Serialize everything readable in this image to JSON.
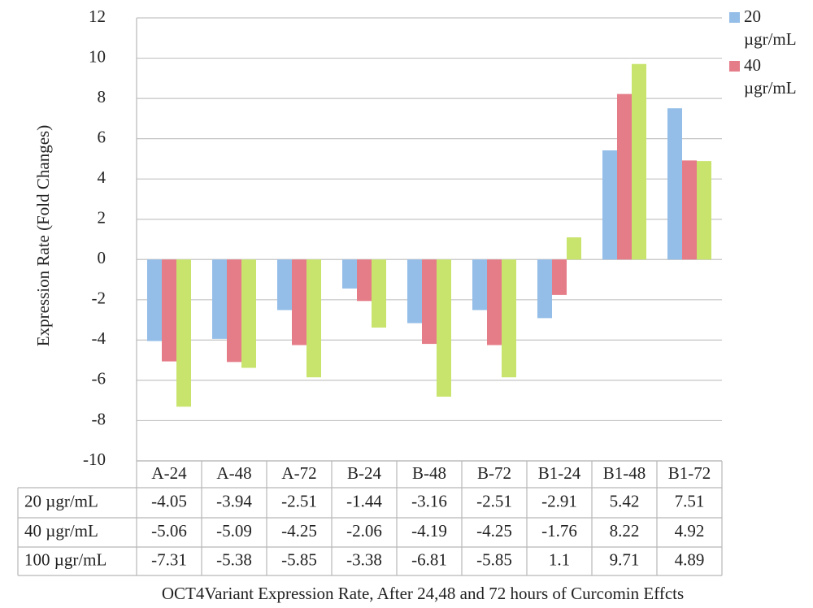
{
  "chart_data": {
    "type": "bar",
    "title": "OCT4Variant Expression Rate, After 24,48 and 72 hours of Curcomin Effcts",
    "y_label": "Expression Rate (Fold Changes)",
    "categories": [
      "A-24",
      "A-48",
      "A-72",
      "B-24",
      "B-48",
      "B-72",
      "B1-24",
      "B1-48",
      "B1-72"
    ],
    "series": [
      {
        "name": "20 µgr/mL",
        "color": "#94bde8",
        "values": [
          -4.05,
          -3.94,
          -2.51,
          -1.44,
          -3.16,
          -2.51,
          -2.91,
          5.42,
          7.51
        ]
      },
      {
        "name": "40 µgr/mL",
        "color": "#e57d88",
        "values": [
          -5.06,
          -5.09,
          -4.25,
          -2.06,
          -4.19,
          -4.25,
          -1.76,
          8.22,
          4.92
        ]
      },
      {
        "name": "100 µgr/mL",
        "color": "#c8e46c",
        "values": [
          -7.31,
          -5.38,
          -5.85,
          -3.38,
          -6.81,
          -5.85,
          1.1,
          9.71,
          4.89
        ]
      }
    ],
    "ylim": [
      -10,
      12
    ],
    "yticks": [
      -10,
      -8,
      -6,
      -4,
      -2,
      0,
      2,
      4,
      6,
      8,
      10,
      12
    ],
    "grid": true
  }
}
